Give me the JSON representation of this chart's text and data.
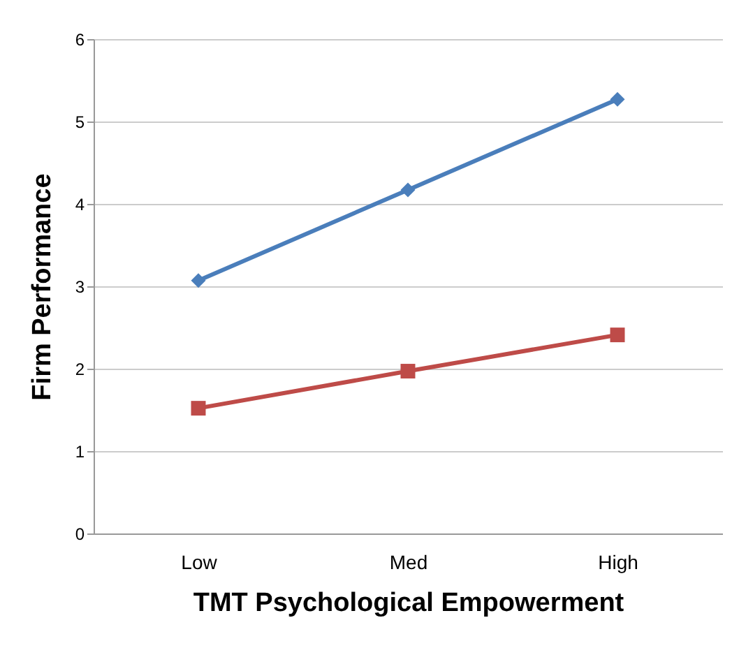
{
  "chart_data": {
    "type": "line",
    "xlabel": "TMT Psychological Empowerment",
    "ylabel": "Firm Performance",
    "categories": [
      "Low",
      "Med",
      "High"
    ],
    "series": [
      {
        "color": "#4a7ebb",
        "marker": "diamond",
        "values": [
          3.07,
          4.17,
          5.27
        ]
      },
      {
        "color": "#be4b48",
        "marker": "square",
        "values": [
          1.52,
          1.97,
          2.41
        ]
      }
    ],
    "ylim": [
      0,
      6
    ],
    "yticks": [
      0,
      1,
      2,
      3,
      4,
      5,
      6
    ],
    "grid": "y"
  }
}
